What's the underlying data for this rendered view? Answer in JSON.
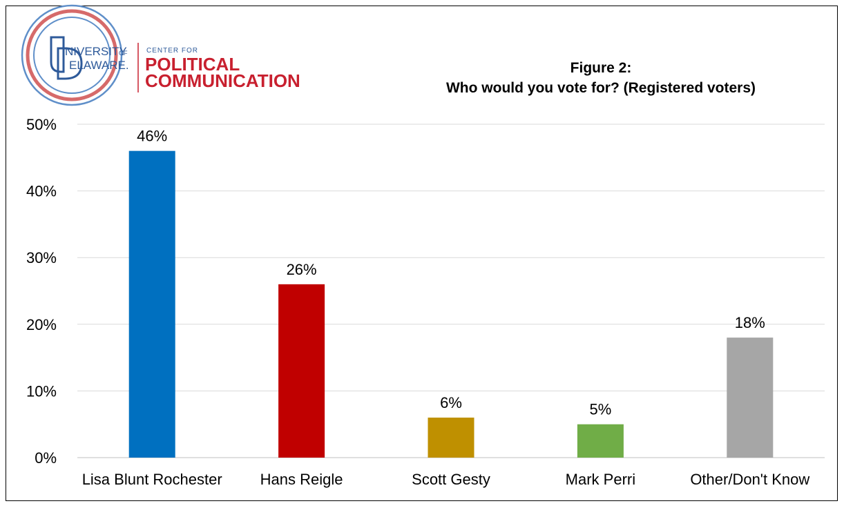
{
  "logo": {
    "university_line1": "NIVERSITY",
    "university_of": "OF",
    "university_line2": "ELAWARE.",
    "center_for": "CENTER FOR",
    "political": "POLITICAL",
    "communication": "COMMUNICATION"
  },
  "colors": {
    "logo_blue": "#2e5a9a",
    "logo_red": "#c8202f",
    "logo_ring_blue": "#5f8fc9",
    "logo_ring_red": "#d66a6a",
    "gridline": "#d9d9d9",
    "axis": "#bfbfbf"
  },
  "chart_data": {
    "type": "bar",
    "title_line1": "Figure 2:",
    "title_line2": "Who would you vote for? (Registered voters)",
    "categories": [
      "Lisa Blunt Rochester",
      "Hans Reigle",
      "Scott Gesty",
      "Mark Perri",
      "Other/Don't Know"
    ],
    "values": [
      46,
      26,
      6,
      5,
      18
    ],
    "value_labels": [
      "46%",
      "26%",
      "6%",
      "5%",
      "18%"
    ],
    "bar_colors": [
      "#0070c0",
      "#c00000",
      "#bf9000",
      "#70ad47",
      "#a6a6a6"
    ],
    "ylim": [
      0,
      50
    ],
    "yticks": [
      0,
      10,
      20,
      30,
      40,
      50
    ],
    "ytick_labels": [
      "0%",
      "10%",
      "20%",
      "30%",
      "40%",
      "50%"
    ],
    "grid": true,
    "legend": "none"
  }
}
